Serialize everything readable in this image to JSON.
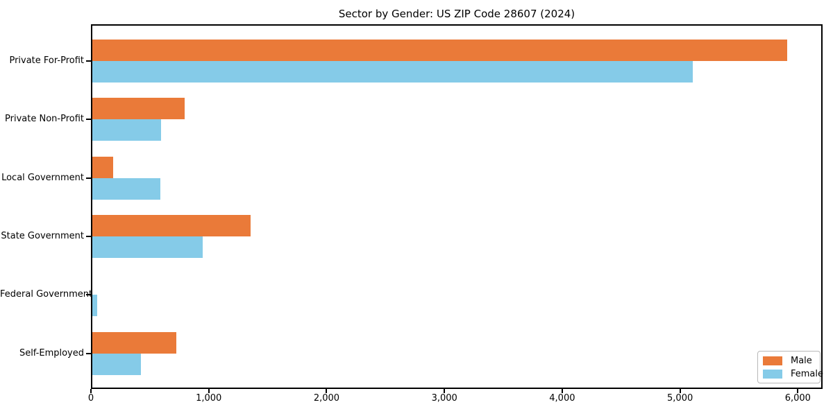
{
  "figure": {
    "background_color": "#ffffff",
    "title": "Sector by Gender: US ZIP Code 28607 (2024)"
  },
  "chart_data": {
    "type": "bar",
    "orientation": "horizontal",
    "title": "Sector by Gender: US ZIP Code 28607 (2024)",
    "xlabel": "",
    "ylabel": "",
    "categories": [
      "Private For-Profit",
      "Private Non-Profit",
      "Local Government",
      "State Government",
      "Federal Government",
      "Self-Employed"
    ],
    "series": [
      {
        "name": "Male",
        "color": "#EA7A39",
        "values": [
          5910,
          795,
          190,
          1355,
          0,
          725
        ]
      },
      {
        "name": "Female",
        "color": "#85CBE8",
        "values": [
          5110,
          595,
          590,
          950,
          55,
          425
        ]
      }
    ],
    "xlim": [
      0,
      6210
    ],
    "xticks": [
      0,
      1000,
      2000,
      3000,
      4000,
      5000,
      6000
    ],
    "xtick_labels": [
      "0",
      "1,000",
      "2,000",
      "3,000",
      "4,000",
      "5,000",
      "6,000"
    ],
    "grid": false,
    "legend": {
      "position": "lower right",
      "entries": [
        "Male",
        "Female"
      ]
    },
    "spine_color": "#000000",
    "text_color": "#000000"
  }
}
